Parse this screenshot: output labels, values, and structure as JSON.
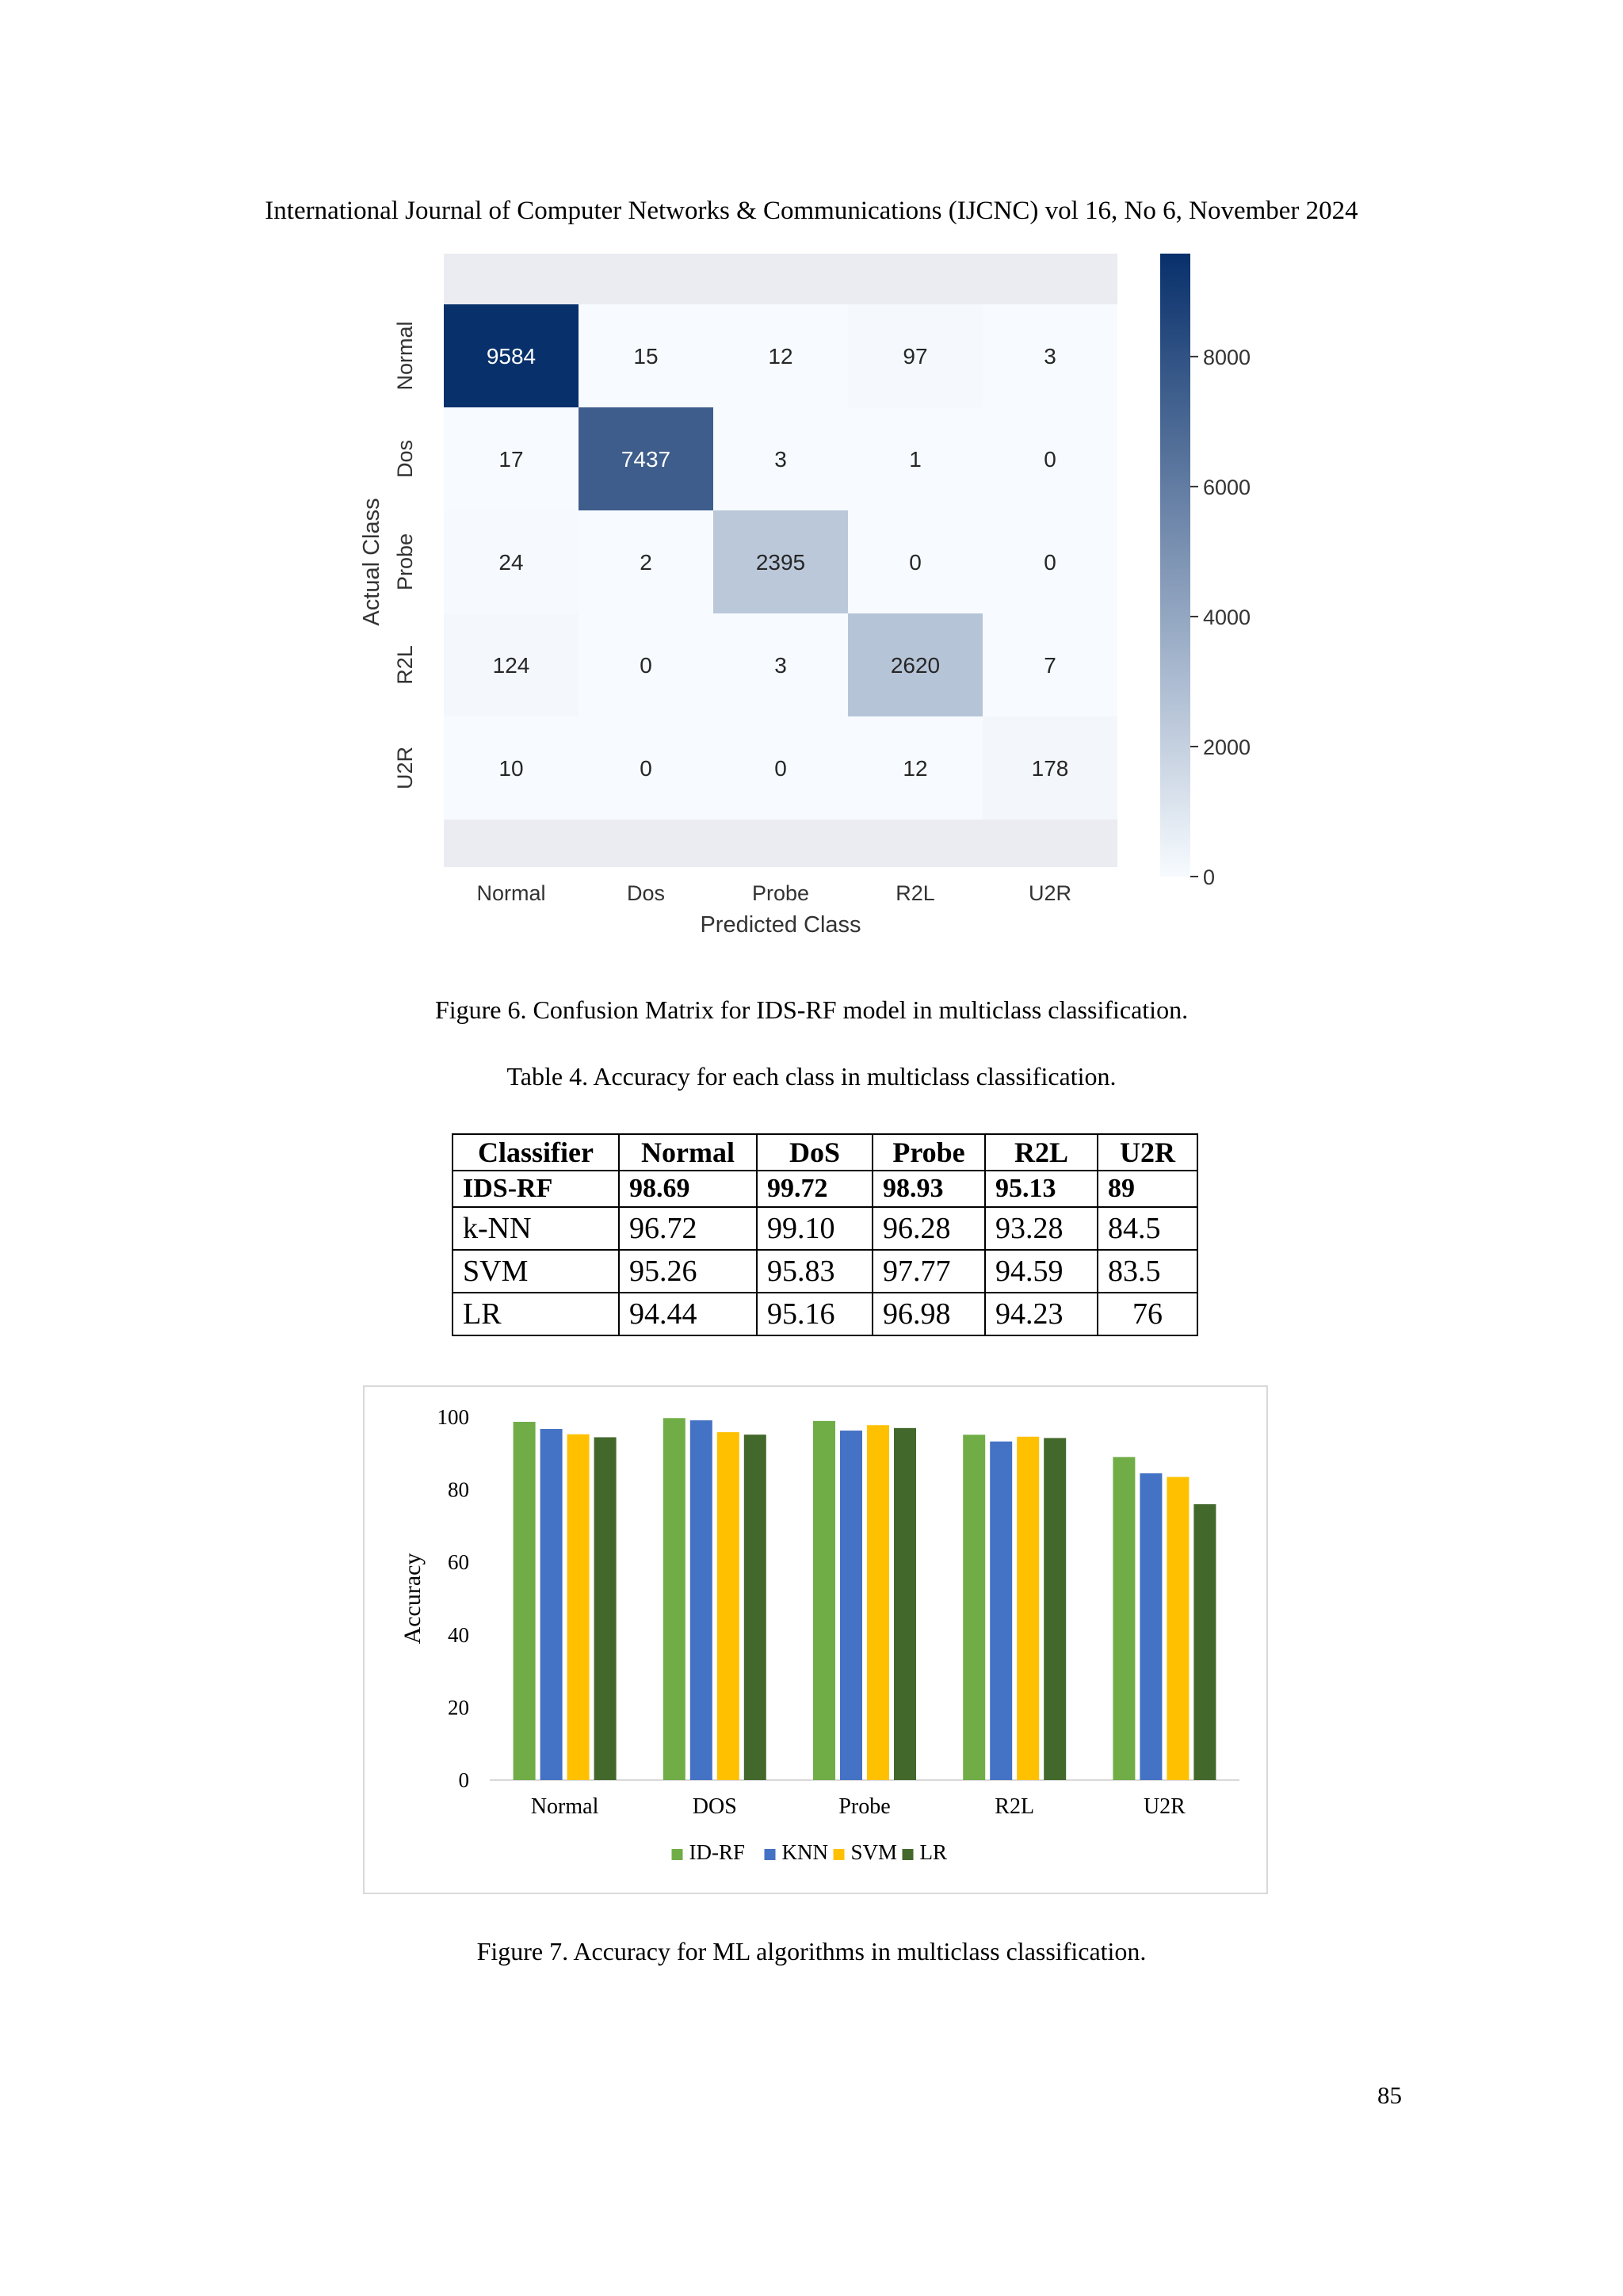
{
  "header": {
    "journal": "International Journal of Computer Networks & Communications (IJCNC) vol 16, No 6, November 2024"
  },
  "confusion_matrix": {
    "ylabel": "Actual Class",
    "xlabel": "Predicted Class",
    "classes": [
      "Normal",
      "Dos",
      "Probe",
      "R2L",
      "U2R"
    ],
    "matrix": [
      [
        9584,
        15,
        12,
        97,
        3
      ],
      [
        17,
        7437,
        3,
        1,
        0
      ],
      [
        24,
        2,
        2395,
        0,
        0
      ],
      [
        124,
        0,
        3,
        2620,
        7
      ],
      [
        10,
        0,
        0,
        12,
        178
      ]
    ],
    "colorbar": {
      "min": 0,
      "max": 9584,
      "ticks": [
        0,
        2000,
        4000,
        6000,
        8000
      ]
    }
  },
  "captions": {
    "fig6": "Figure 6. Confusion Matrix for IDS-RF model in multiclass classification.",
    "table4": "Table 4. Accuracy for each class in multiclass classification.",
    "fig7": "Figure 7. Accuracy for ML algorithms in multiclass classification."
  },
  "table": {
    "headers": [
      "Classifier",
      "Normal",
      "DoS",
      "Probe",
      "R2L",
      "U2R"
    ],
    "rows": [
      [
        "IDS-RF",
        "98.69",
        "99.72",
        "98.93",
        "95.13",
        "89"
      ],
      [
        "k-NN",
        "96.72",
        "99.10",
        "96.28",
        "93.28",
        "84.5"
      ],
      [
        "SVM",
        "95.26",
        "95.83",
        "97.77",
        "94.59",
        "83.5"
      ],
      [
        "LR",
        "94.44",
        "95.16",
        "96.98",
        "94.23",
        "76"
      ]
    ]
  },
  "chart_data": [
    {
      "type": "heatmap",
      "title": "",
      "xlabel": "Predicted Class",
      "ylabel": "Actual Class",
      "x": [
        "Normal",
        "Dos",
        "Probe",
        "R2L",
        "U2R"
      ],
      "y": [
        "Normal",
        "Dos",
        "Probe",
        "R2L",
        "U2R"
      ],
      "values": [
        [
          9584,
          15,
          12,
          97,
          3
        ],
        [
          17,
          7437,
          3,
          1,
          0
        ],
        [
          24,
          2,
          2395,
          0,
          0
        ],
        [
          124,
          0,
          3,
          2620,
          7
        ],
        [
          10,
          0,
          0,
          12,
          178
        ]
      ],
      "colorbar_ticks": [
        0,
        2000,
        4000,
        6000,
        8000
      ]
    },
    {
      "type": "bar",
      "title": "",
      "xlabel": "",
      "ylabel": "Accuracy",
      "categories": [
        "Normal",
        "DOS",
        "Probe",
        "R2L",
        "U2R"
      ],
      "ylim": [
        0,
        100
      ],
      "yticks": [
        0,
        20,
        40,
        60,
        80,
        100
      ],
      "legend": "bottom",
      "series": [
        {
          "name": "ID-RF",
          "color": "#70ad47",
          "values": [
            98.69,
            99.72,
            98.93,
            95.13,
            89
          ]
        },
        {
          "name": "KNN",
          "color": "#4472c4",
          "values": [
            96.72,
            99.1,
            96.28,
            93.28,
            84.5
          ]
        },
        {
          "name": "SVM",
          "color": "#ffc000",
          "values": [
            95.26,
            95.83,
            97.77,
            94.59,
            83.5
          ]
        },
        {
          "name": "LR",
          "color": "#43682b",
          "values": [
            94.44,
            95.16,
            96.98,
            94.23,
            76
          ]
        }
      ]
    }
  ],
  "page": {
    "number": "85"
  }
}
